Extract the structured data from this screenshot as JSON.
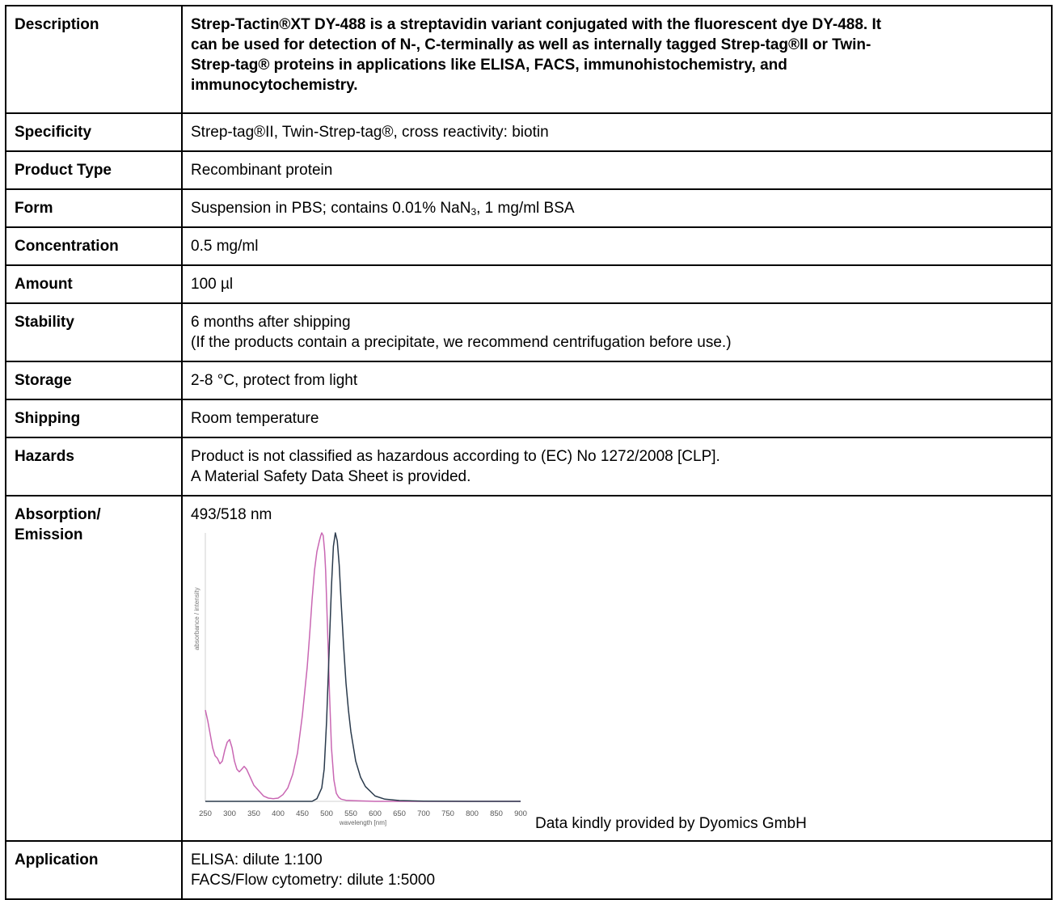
{
  "rows": {
    "description": {
      "label": "Description",
      "lines": [
        "Strep-Tactin®XT DY-488 is a streptavidin variant conjugated with the fluorescent dye DY-488. It",
        "can be used for detection of N-, C-terminally as well as internally tagged Strep-tag®II or Twin-",
        "Strep-tag® proteins in applications like ELISA, FACS, immunohistochemistry, and",
        "immunocytochemistry."
      ]
    },
    "specificity": {
      "label": "Specificity",
      "value": "Strep-tag®II, Twin-Strep-tag®, cross reactivity: biotin"
    },
    "product_type": {
      "label": "Product Type",
      "value": "Recombinant protein"
    },
    "form": {
      "label": "Form",
      "value_pre": "Suspension in PBS; contains 0.01% NaN",
      "value_sub": "3",
      "value_post": ", 1 mg/ml BSA"
    },
    "concentration": {
      "label": "Concentration",
      "value": "0.5 mg/ml"
    },
    "amount": {
      "label": "Amount",
      "value": "100 µl"
    },
    "stability": {
      "label": "Stability",
      "lines": [
        "6 months after shipping",
        "(If the products contain a precipitate, we recommend centrifugation before use.)"
      ]
    },
    "storage": {
      "label": "Storage",
      "value": "2-8 °C, protect from light"
    },
    "shipping": {
      "label": "Shipping",
      "value": "Room temperature"
    },
    "hazards": {
      "label": "Hazards",
      "lines": [
        "Product is not classified as hazardous according to (EC) No 1272/2008 [CLP].",
        "A Material Safety Data Sheet is provided."
      ]
    },
    "absorption": {
      "label_line1": "Absorption/",
      "label_line2": "Emission",
      "value": "493/518 nm",
      "credit": "Data kindly provided by Dyomics GmbH"
    },
    "application": {
      "label": "Application",
      "lines": [
        "ELISA: dilute 1:100",
        "FACS/Flow cytometry: dilute 1:5000"
      ]
    }
  },
  "chart_data": {
    "type": "line",
    "xlabel": "wavelength [nm]",
    "ylabel": "absorbance / intensity",
    "xlim": [
      250,
      900
    ],
    "ylim": [
      0,
      1
    ],
    "xticks": [
      250,
      300,
      350,
      400,
      450,
      500,
      550,
      600,
      650,
      700,
      750,
      800,
      850,
      900
    ],
    "grid": false,
    "series": [
      {
        "color": "#c967b3",
        "x": [
          250,
          255,
          260,
          265,
          270,
          275,
          280,
          285,
          290,
          295,
          300,
          305,
          310,
          315,
          320,
          325,
          330,
          335,
          340,
          345,
          350,
          360,
          370,
          380,
          390,
          400,
          410,
          420,
          430,
          440,
          450,
          460,
          465,
          470,
          475,
          480,
          485,
          488,
          490,
          493,
          496,
          498,
          500,
          503,
          506,
          510,
          515,
          520,
          525,
          530,
          540,
          560,
          600,
          700,
          900
        ],
        "y": [
          0.34,
          0.3,
          0.25,
          0.2,
          0.17,
          0.16,
          0.14,
          0.15,
          0.19,
          0.22,
          0.23,
          0.2,
          0.15,
          0.12,
          0.11,
          0.12,
          0.13,
          0.12,
          0.1,
          0.08,
          0.06,
          0.04,
          0.02,
          0.012,
          0.01,
          0.012,
          0.025,
          0.05,
          0.1,
          0.18,
          0.32,
          0.5,
          0.62,
          0.75,
          0.86,
          0.93,
          0.97,
          0.99,
          1.0,
          0.99,
          0.93,
          0.86,
          0.75,
          0.58,
          0.4,
          0.2,
          0.08,
          0.03,
          0.015,
          0.008,
          0.004,
          0.002,
          0.0,
          0.0,
          0.0
        ]
      },
      {
        "color": "#2a3a4c",
        "x": [
          250,
          400,
          470,
          480,
          490,
          495,
          500,
          505,
          510,
          514,
          518,
          522,
          526,
          530,
          535,
          540,
          545,
          550,
          560,
          570,
          580,
          600,
          620,
          650,
          700,
          800,
          900
        ],
        "y": [
          0.0,
          0.0,
          0.0,
          0.01,
          0.05,
          0.12,
          0.3,
          0.55,
          0.8,
          0.95,
          1.0,
          0.97,
          0.88,
          0.74,
          0.58,
          0.44,
          0.34,
          0.26,
          0.15,
          0.09,
          0.055,
          0.02,
          0.008,
          0.003,
          0.001,
          0.0,
          0.0
        ]
      }
    ]
  }
}
